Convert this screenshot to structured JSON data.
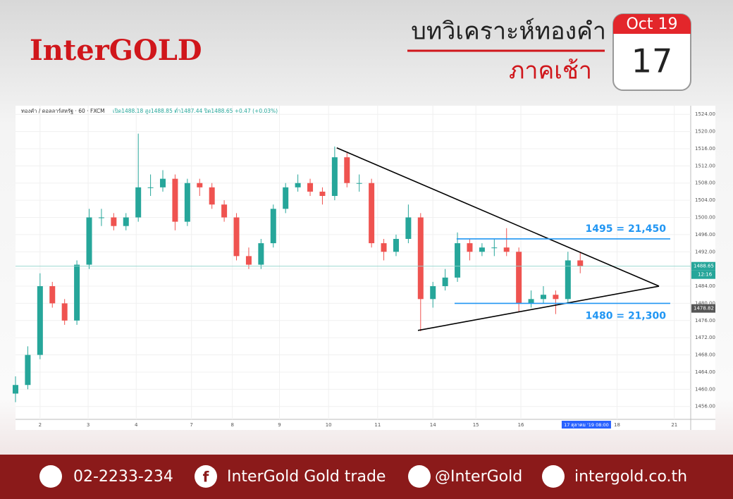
{
  "header": {
    "logo": "InterGOLD",
    "title": "บทวิเคราะห์ทองคำ",
    "subtitle": "ภาคเช้า",
    "date": {
      "month": "Oct 19",
      "day": "17"
    }
  },
  "chart_data": {
    "type": "candlestick",
    "symbol": "ทองคำ / ดอลลาร์สหรัฐ · 60 · FXCM",
    "ohlc_info": "เปิด1488.18 สูง1488.85 ต่ำ1487.44 ปิด1488.65 +0.47 (+0.03%)",
    "x": [
      0,
      6,
      12,
      18,
      24,
      30,
      36,
      42,
      48,
      54,
      60,
      66,
      72,
      78,
      84,
      90,
      96,
      102,
      108,
      114,
      120,
      126,
      132,
      138,
      144,
      150,
      156,
      162,
      168,
      174,
      180,
      186,
      192,
      198,
      204,
      210,
      216,
      222,
      228,
      234,
      240,
      246,
      252,
      258,
      264,
      270,
      276
    ],
    "open": [
      1459,
      1461,
      1468,
      1484,
      1480,
      1476,
      1489,
      1500,
      1500,
      1498,
      1500,
      1507,
      1507,
      1509,
      1499,
      1508,
      1507,
      1503,
      1500,
      1491,
      1489,
      1494,
      1502,
      1507,
      1508,
      1506,
      1505,
      1514,
      1508,
      1508,
      1494,
      1492,
      1495,
      1500,
      1481,
      1484,
      1486,
      1494,
      1492,
      1493,
      1493,
      1492,
      1480,
      1481,
      1482,
      1481,
      1490
    ],
    "high": [
      1463,
      1470,
      1487,
      1485,
      1481,
      1490,
      1502,
      1502,
      1501,
      1501,
      1519.5,
      1510,
      1511,
      1510,
      1509,
      1509,
      1508,
      1504,
      1501,
      1493,
      1495,
      1503,
      1508,
      1510,
      1509,
      1507,
      1516.5,
      1515,
      1510,
      1509,
      1495,
      1496,
      1503,
      1501,
      1485,
      1488,
      1496.5,
      1495,
      1494,
      1495,
      1497.5,
      1493,
      1483,
      1484,
      1483,
      1492,
      1492
    ],
    "low": [
      1457,
      1460,
      1467,
      1479,
      1475,
      1475,
      1488,
      1498,
      1497,
      1497,
      1499,
      1505,
      1506,
      1497,
      1498,
      1505,
      1502,
      1499,
      1490,
      1488,
      1488,
      1493,
      1501,
      1506,
      1505,
      1503,
      1504,
      1507,
      1506,
      1493,
      1490,
      1491,
      1494,
      1473.5,
      1479,
      1483,
      1485,
      1490,
      1491,
      1491,
      1491,
      1478,
      1479,
      1480,
      1477.5,
      1480,
      1487
    ],
    "close": [
      1461,
      1468,
      1484,
      1480,
      1476,
      1489,
      1500,
      1500,
      1498,
      1500,
      1507,
      1507,
      1509,
      1499,
      1508,
      1507,
      1503,
      1500,
      1491,
      1489,
      1494,
      1502,
      1507,
      1508,
      1506,
      1505,
      1514,
      1508,
      1508,
      1494,
      1492,
      1495,
      1500,
      1481,
      1484,
      1486,
      1494,
      1492,
      1493,
      1493,
      1492,
      1480,
      1481,
      1482,
      1481,
      1490,
      1488.65
    ],
    "up_color": "#26a69a",
    "down_color": "#ef5350",
    "xlim": [
      0,
      330
    ],
    "xticks": [
      {
        "value": 12,
        "label": "2"
      },
      {
        "value": 35.5,
        "label": "3"
      },
      {
        "value": 59,
        "label": "4"
      },
      {
        "value": 86,
        "label": "7"
      },
      {
        "value": 106,
        "label": "8"
      },
      {
        "value": 129,
        "label": "9"
      },
      {
        "value": 153,
        "label": "10"
      },
      {
        "value": 177,
        "label": "11"
      },
      {
        "value": 204,
        "label": "14"
      },
      {
        "value": 225,
        "label": "15"
      },
      {
        "value": 247,
        "label": "16"
      },
      {
        "value": 294,
        "label": "18"
      },
      {
        "value": 322,
        "label": "21"
      }
    ],
    "cursor": {
      "x": 279,
      "label": "17 ตุลาคม '19 08:00"
    },
    "ylim": [
      1453,
      1526
    ],
    "yticks": [
      {
        "value": 1456,
        "label": "1456.00"
      },
      {
        "value": 1460,
        "label": "1460.00"
      },
      {
        "value": 1464,
        "label": "1464.00"
      },
      {
        "value": 1468,
        "label": "1468.00"
      },
      {
        "value": 1472,
        "label": "1472.00"
      },
      {
        "value": 1476,
        "label": "1476.00"
      },
      {
        "value": 1480,
        "label": "1480.00"
      },
      {
        "value": 1484,
        "label": "1484.00"
      },
      {
        "value": 1488,
        "label": "1488.00"
      },
      {
        "value": 1492,
        "label": "1492.00"
      },
      {
        "value": 1496,
        "label": "1496.00"
      },
      {
        "value": 1500,
        "label": "1500.00"
      },
      {
        "value": 1504,
        "label": "1504.00"
      },
      {
        "value": 1508,
        "label": "1508.00"
      },
      {
        "value": 1512,
        "label": "1512.00"
      },
      {
        "value": 1516,
        "label": "1516.00"
      },
      {
        "value": 1520,
        "label": "1520.00"
      },
      {
        "value": 1524,
        "label": "1524.00"
      }
    ],
    "grid": true,
    "trendlines": [
      {
        "x": [
          157,
          314.5
        ],
        "y": [
          1516.2,
          1484
        ]
      },
      {
        "x": [
          196.7,
          314.5
        ],
        "y": [
          1473.7,
          1484
        ]
      }
    ],
    "trendline_color": "#000000",
    "levels": [
      {
        "value": 1495,
        "label": "1495 = 21,450",
        "x": [
          215.6,
          320
        ]
      },
      {
        "value": 1480,
        "label": "1480 = 21,300",
        "x": [
          214.6,
          320
        ]
      }
    ],
    "level_color": "#2196f3",
    "price_labels": [
      {
        "value": 1488.65,
        "label": "1488.65",
        "color": "#26a69a"
      },
      {
        "value": 1478.82,
        "label": "1478.82",
        "color": "#555555"
      }
    ],
    "time_label": "12:16"
  },
  "footer": {
    "phone": "02-2233-234",
    "facebook": "InterGold Gold trade",
    "line": "@InterGold",
    "website": "intergold.co.th"
  }
}
